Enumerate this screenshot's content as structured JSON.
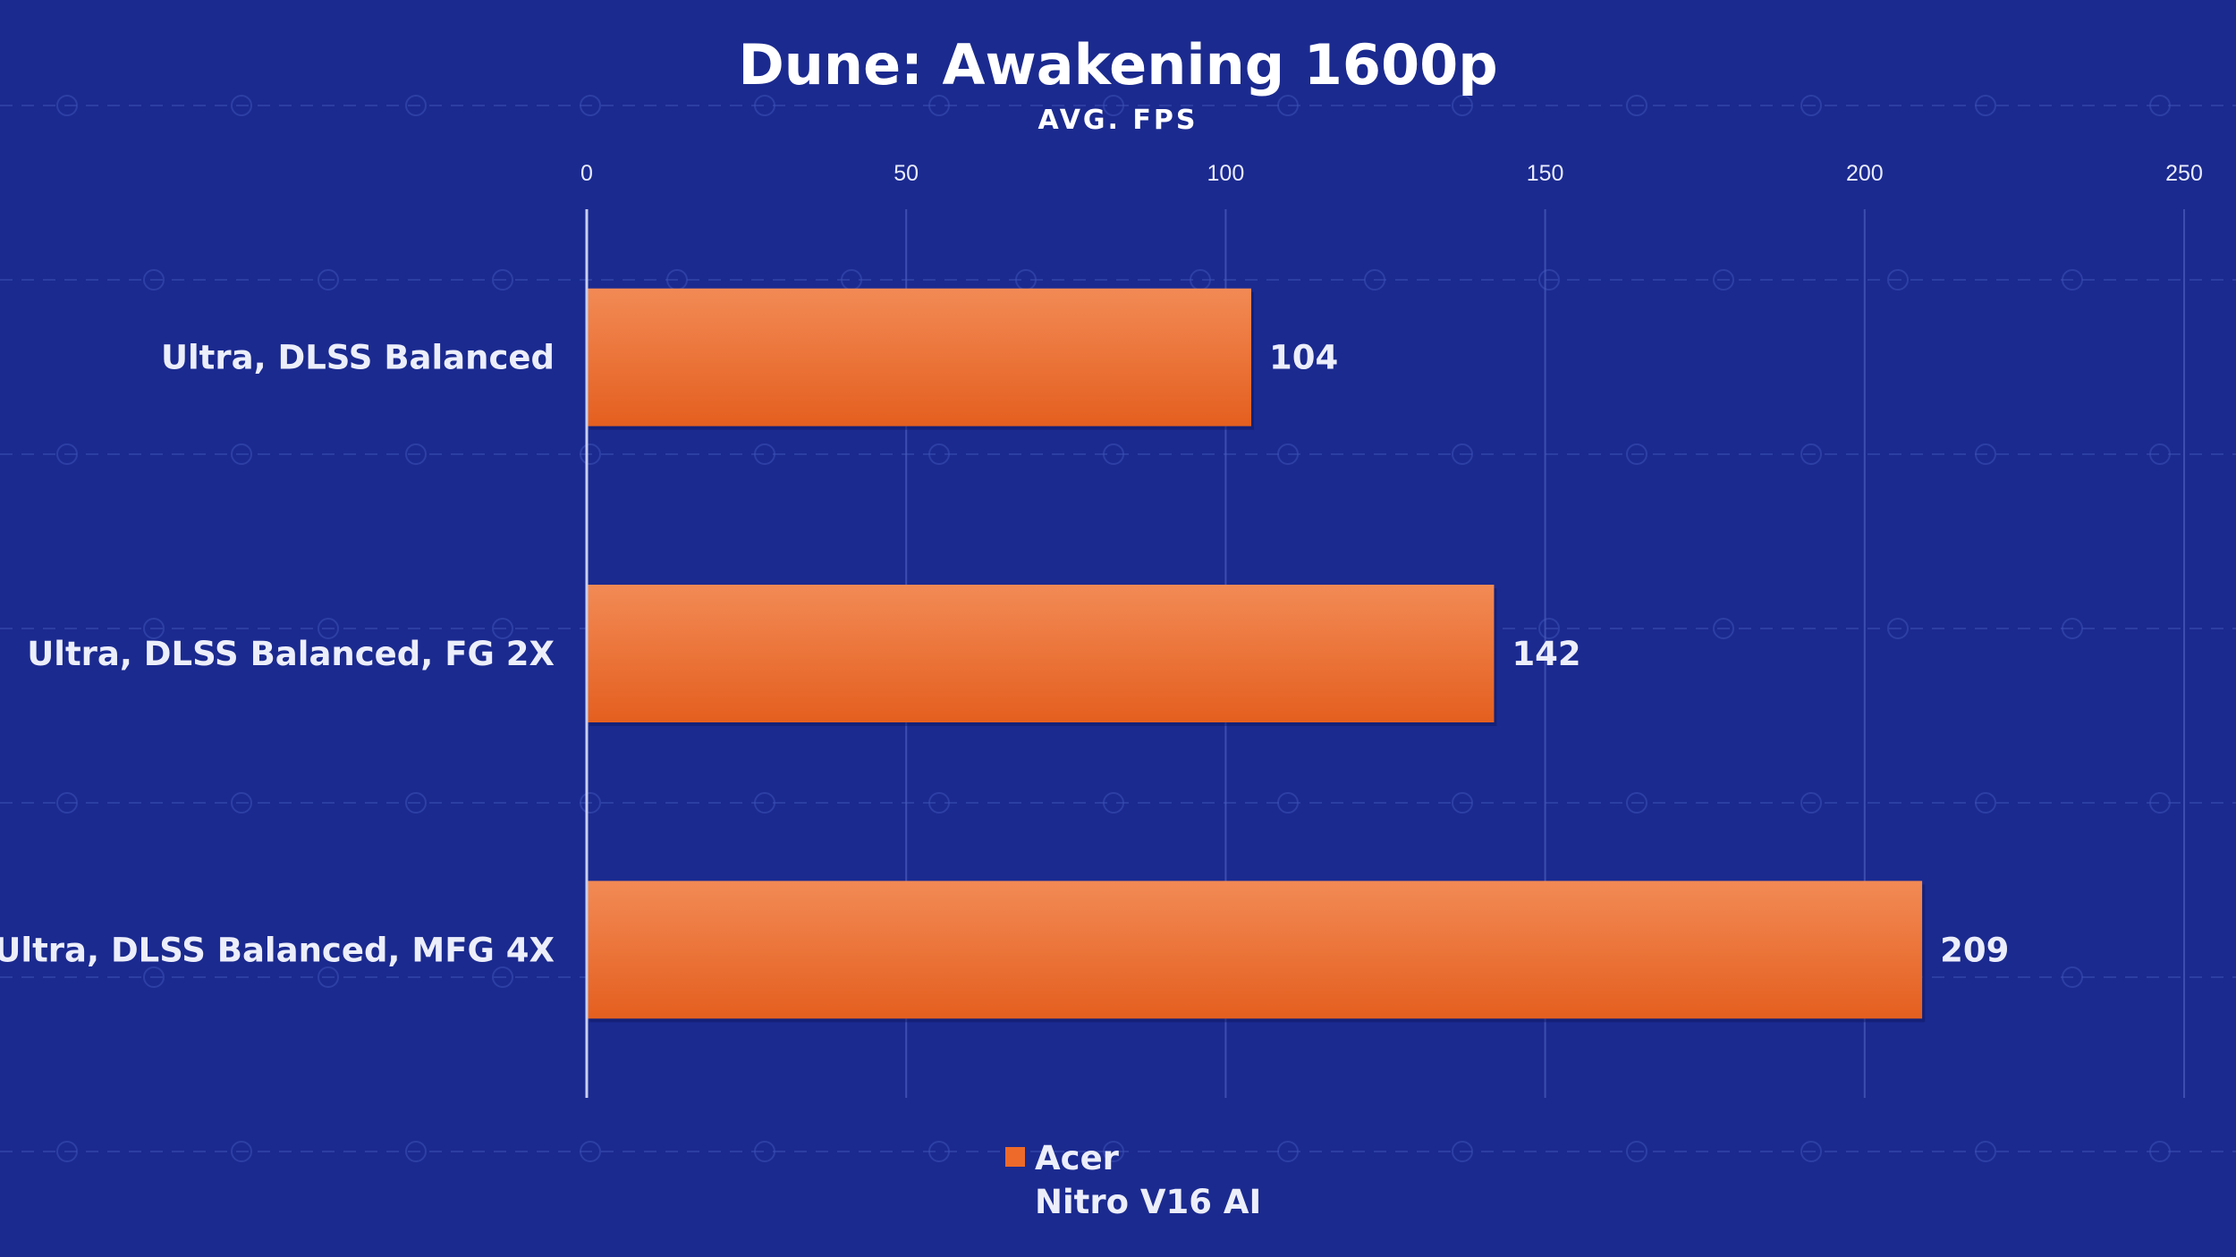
{
  "chart_data": {
    "type": "bar",
    "orientation": "horizontal",
    "title": "Dune: Awakening 1600p",
    "subtitle": "AVG. FPS",
    "categories": [
      "Ultra, DLSS Balanced",
      "Ultra, DLSS Balanced, FG 2X",
      "Ultra, DLSS Balanced, MFG 4X"
    ],
    "series": [
      {
        "name": "Acer Nitro V16 AI",
        "legend_lines": [
          "Acer",
          "Nitro V16 AI"
        ],
        "color": "#ee6a2a",
        "values": [
          104,
          142,
          209
        ]
      }
    ],
    "xlim": [
      0,
      250
    ],
    "xticks": [
      0,
      50,
      100,
      150,
      200,
      250
    ],
    "grid": true,
    "tick_position": "top",
    "legend_position": "bottom-center"
  },
  "colors": {
    "background": "#1b2a8f",
    "bar_top": "#f28a55",
    "bar_bottom": "#e45f1f",
    "text": "#eceefa"
  }
}
